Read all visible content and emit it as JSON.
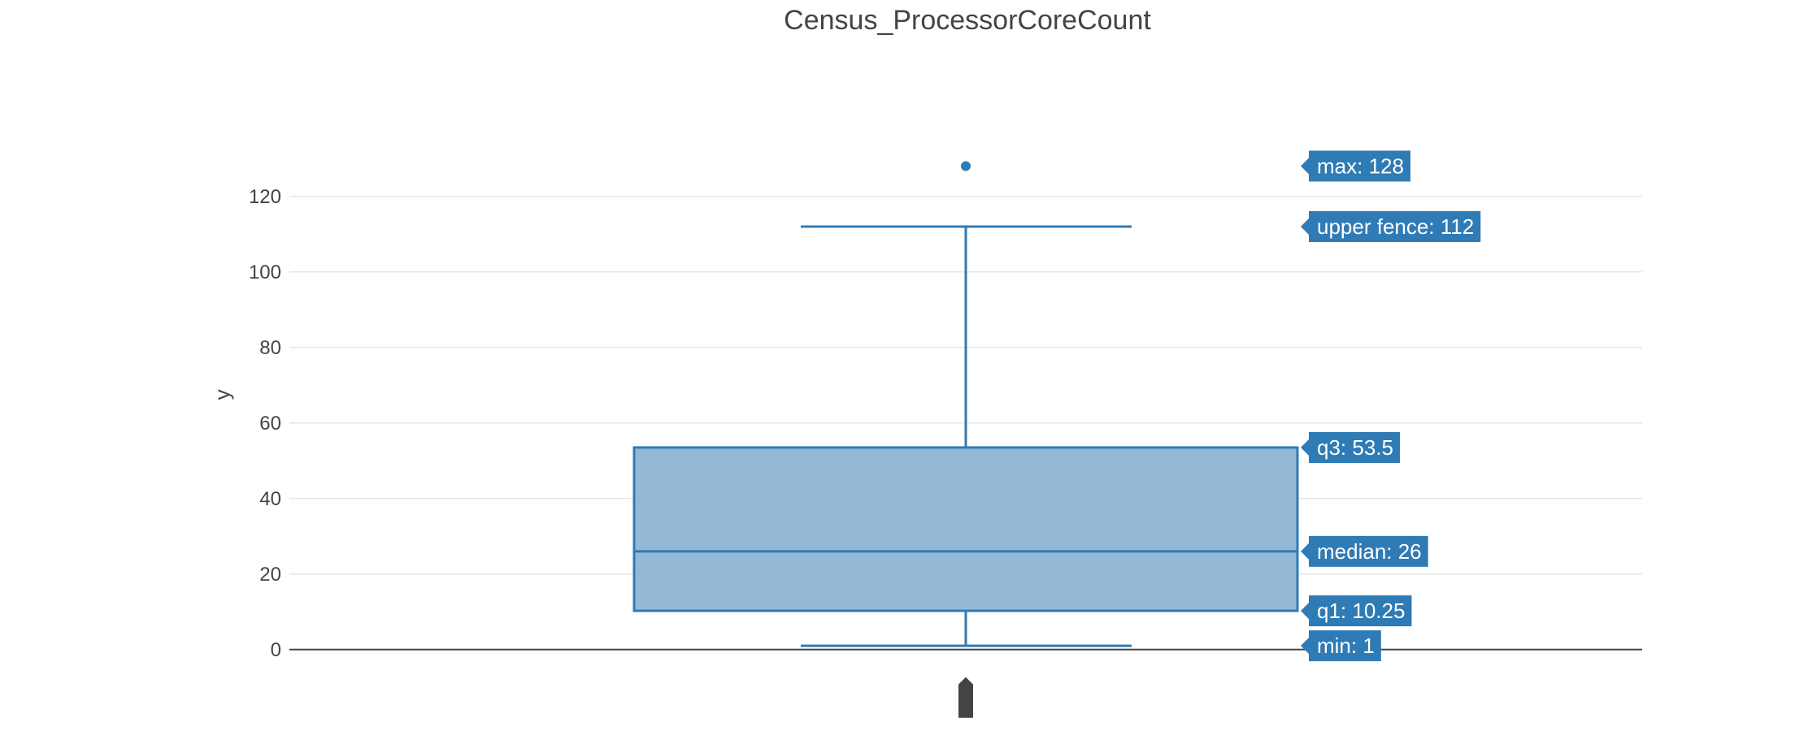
{
  "chart_data": {
    "type": "box",
    "title": "Census_ProcessorCoreCount",
    "xlabel": "",
    "ylabel": "y",
    "ylim": [
      -5,
      135
    ],
    "yticks": [
      0,
      20,
      40,
      60,
      80,
      100,
      120
    ],
    "grid": true,
    "colors": {
      "box_line": "#2f7bb5",
      "box_fill": "#94b9d7",
      "label_bg": "#2f7bb5",
      "label_text": "#ffffff",
      "grid": "#e6e6e6",
      "zero_line": "#444444",
      "text": "#444444"
    },
    "stats": {
      "min": 1,
      "q1": 10.25,
      "median": 26,
      "q3": 53.5,
      "upper_fence": 112,
      "max": 128
    },
    "outliers": [
      128
    ],
    "hover_labels": [
      {
        "key": "max",
        "text": "max: 128"
      },
      {
        "key": "upper_fence",
        "text": "upper fence: 112"
      },
      {
        "key": "q3",
        "text": "q3: 53.5"
      },
      {
        "key": "median",
        "text": "median: 26"
      },
      {
        "key": "q1",
        "text": "q1: 10.25"
      },
      {
        "key": "min",
        "text": "min: 1"
      }
    ]
  }
}
